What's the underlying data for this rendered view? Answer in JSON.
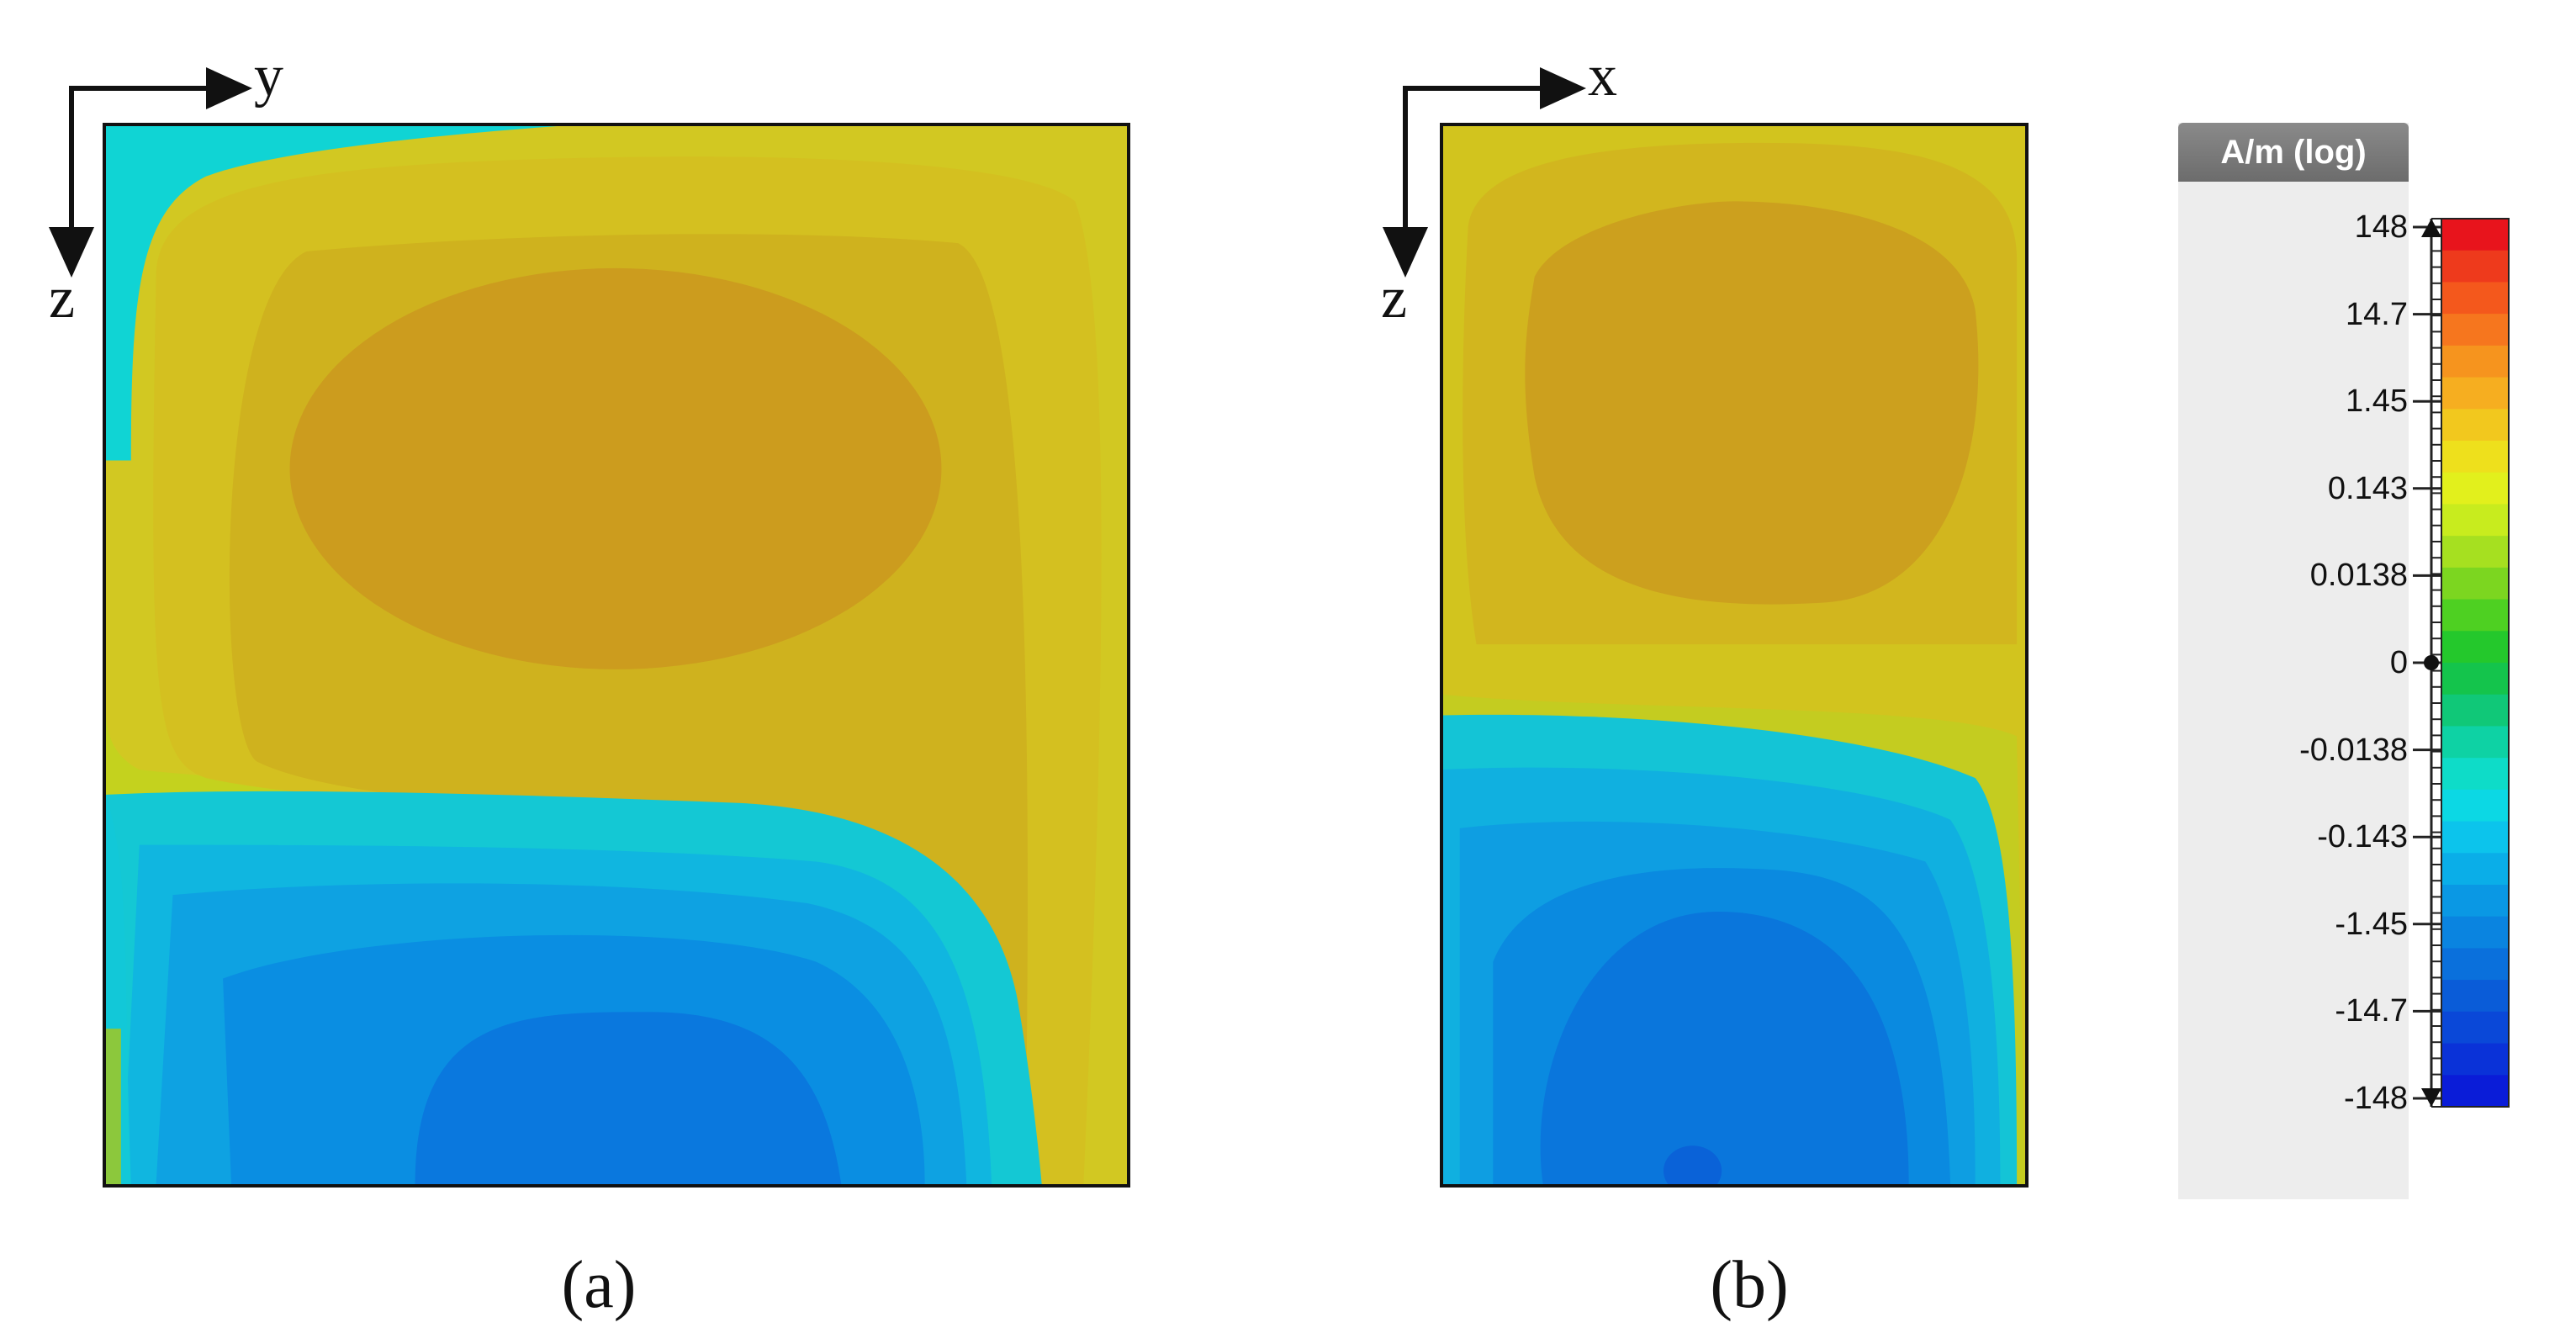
{
  "panels": [
    {
      "id": "a",
      "caption": "(a)",
      "horizontal_axis": "y",
      "vertical_axis": "z",
      "description": "field distribution, y-z plane"
    },
    {
      "id": "b",
      "caption": "(b)",
      "horizontal_axis": "x",
      "vertical_axis": "z",
      "description": "field distribution, x-z plane"
    }
  ],
  "colorbar": {
    "title": "A/m (log)",
    "tick_labels": [
      "148",
      "14.7",
      "1.45",
      "0.143",
      "0.0138",
      "0",
      "-0.0138",
      "-0.143",
      "-1.45",
      "-14.7",
      "-148"
    ],
    "colors_top_to_bottom": [
      "#e8141c",
      "#ee3a1c",
      "#f4581c",
      "#f6761e",
      "#f6941e",
      "#f6ae20",
      "#f2c81e",
      "#eee01c",
      "#e2f01c",
      "#c8ec1e",
      "#a6e020",
      "#7cd620",
      "#4ed022",
      "#24c82c",
      "#14c44c",
      "#10c878",
      "#0ed2a4",
      "#0edcc8",
      "#0cd8e4",
      "#0cc4ec",
      "#0aaee8",
      "#0a98e4",
      "#0a84e0",
      "#0a70dc",
      "#0a5cd8",
      "#0a48d8",
      "#0a32d8",
      "#0a1cd8"
    ]
  },
  "chart_data": [
    {
      "type": "heatmap",
      "title": "(a)",
      "xlabel": "y",
      "ylabel": "z",
      "colorbar_label": "A/m (log)",
      "structure": "positive-field lobe in upper half (peak ~1.45–14.7 A/m), negative-field lobe in lower half (peak ~ -14.7 A/m), zero-crossing band near mid-height curving down along right edge"
    },
    {
      "type": "heatmap",
      "title": "(b)",
      "xlabel": "x",
      "ylabel": "z",
      "colorbar_label": "A/m (log)",
      "structure": "positive-field lobe in upper half (peak ~1.45–14.7 A/m), negative-field lobe in lower half (peak ~ -14.7 A/m), zero-crossing band near mid-height"
    }
  ]
}
